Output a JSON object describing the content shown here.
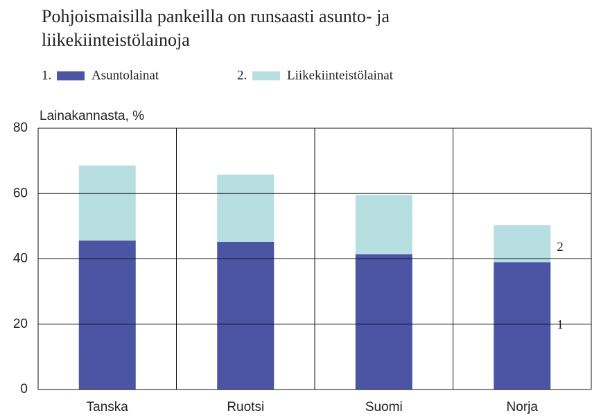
{
  "chart_data": {
    "type": "stacked_bar",
    "title": "Pohjoismaisilla pankeilla on runsaasti asunto- ja liikekiinteistölainoja",
    "y_axis_label": "Lainakannasta, %",
    "categories": [
      "Tanska",
      "Ruotsi",
      "Suomi",
      "Norja"
    ],
    "series": [
      {
        "key": "1.",
        "name": "Asuntolainat",
        "color": "#4b55a3",
        "values": [
          45.6,
          45.2,
          41.4,
          39.0
        ],
        "annotation": "1"
      },
      {
        "key": "2.",
        "name": "Liikekiinteistölainat",
        "color": "#b7dfe2",
        "values": [
          23.0,
          20.6,
          18.2,
          11.3
        ],
        "annotation": "2"
      }
    ],
    "ylim": [
      0,
      80
    ],
    "yticks": [
      0,
      20,
      40,
      60,
      80
    ],
    "grid": true
  }
}
